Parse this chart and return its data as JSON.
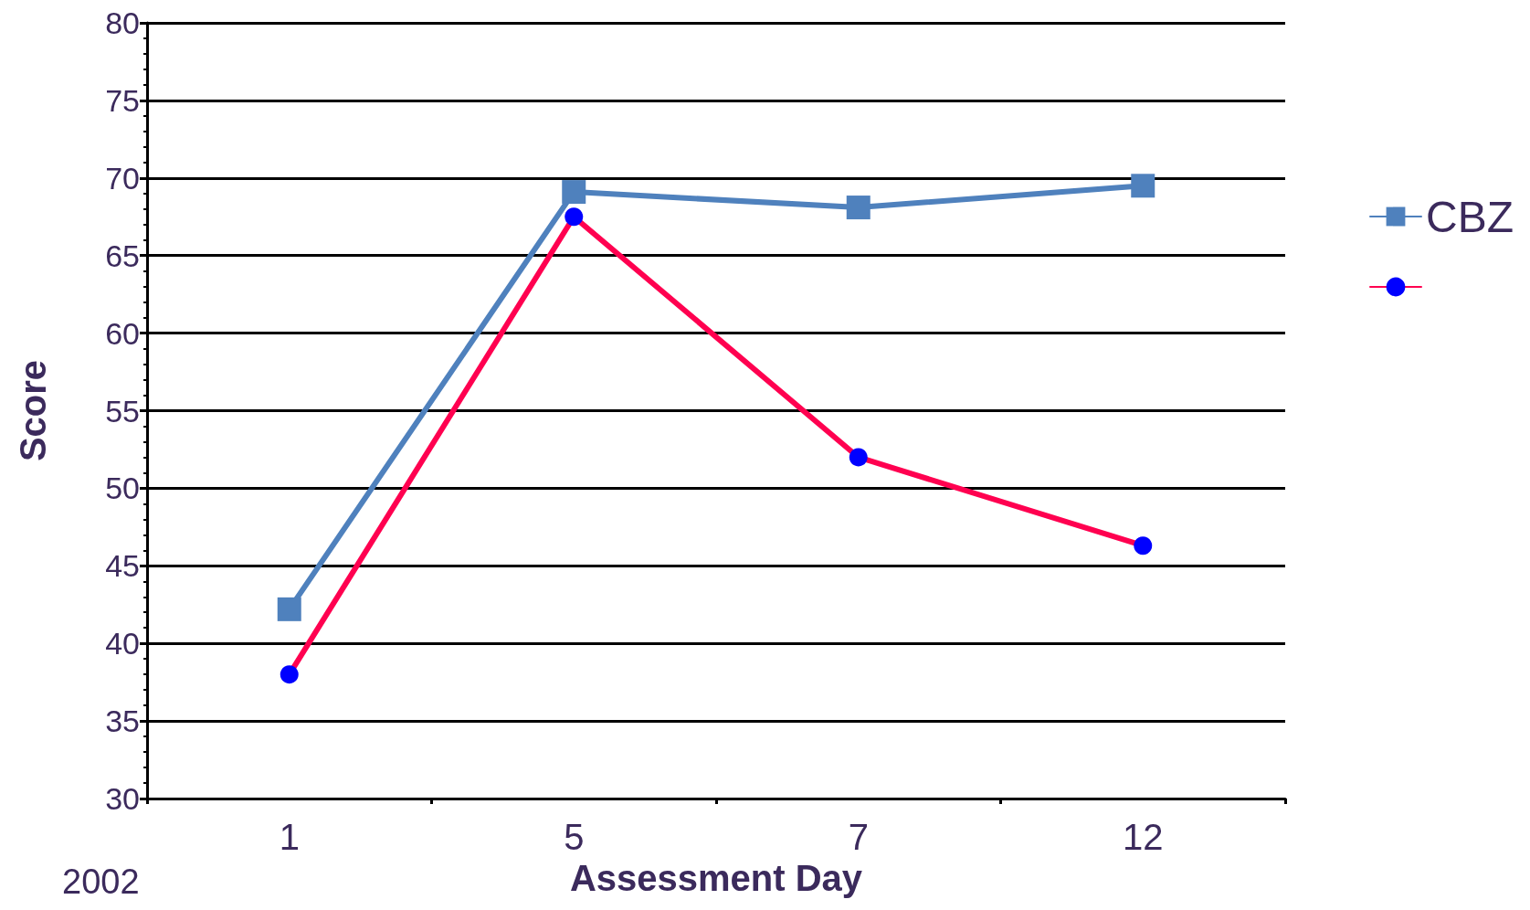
{
  "chart_data": {
    "type": "line",
    "xlabel": "Assessment Day",
    "ylabel": "Score",
    "categories": [
      "1",
      "5",
      "7",
      "12"
    ],
    "series": [
      {
        "name": "CBZ",
        "color": "#4f81bd",
        "marker": "square",
        "values": [
          42.2,
          69.1,
          68.1,
          69.5
        ]
      },
      {
        "color": "#ff0050",
        "marker": "circle",
        "values": [
          38,
          67.5,
          52,
          46.3
        ]
      }
    ],
    "ylim": [
      30,
      80
    ],
    "yticks": [
      30,
      35,
      40,
      45,
      50,
      55,
      60,
      65,
      70,
      75,
      80
    ],
    "grid": "y",
    "legend": "right",
    "line_style": "solid",
    "annotations": [
      "2002"
    ]
  }
}
